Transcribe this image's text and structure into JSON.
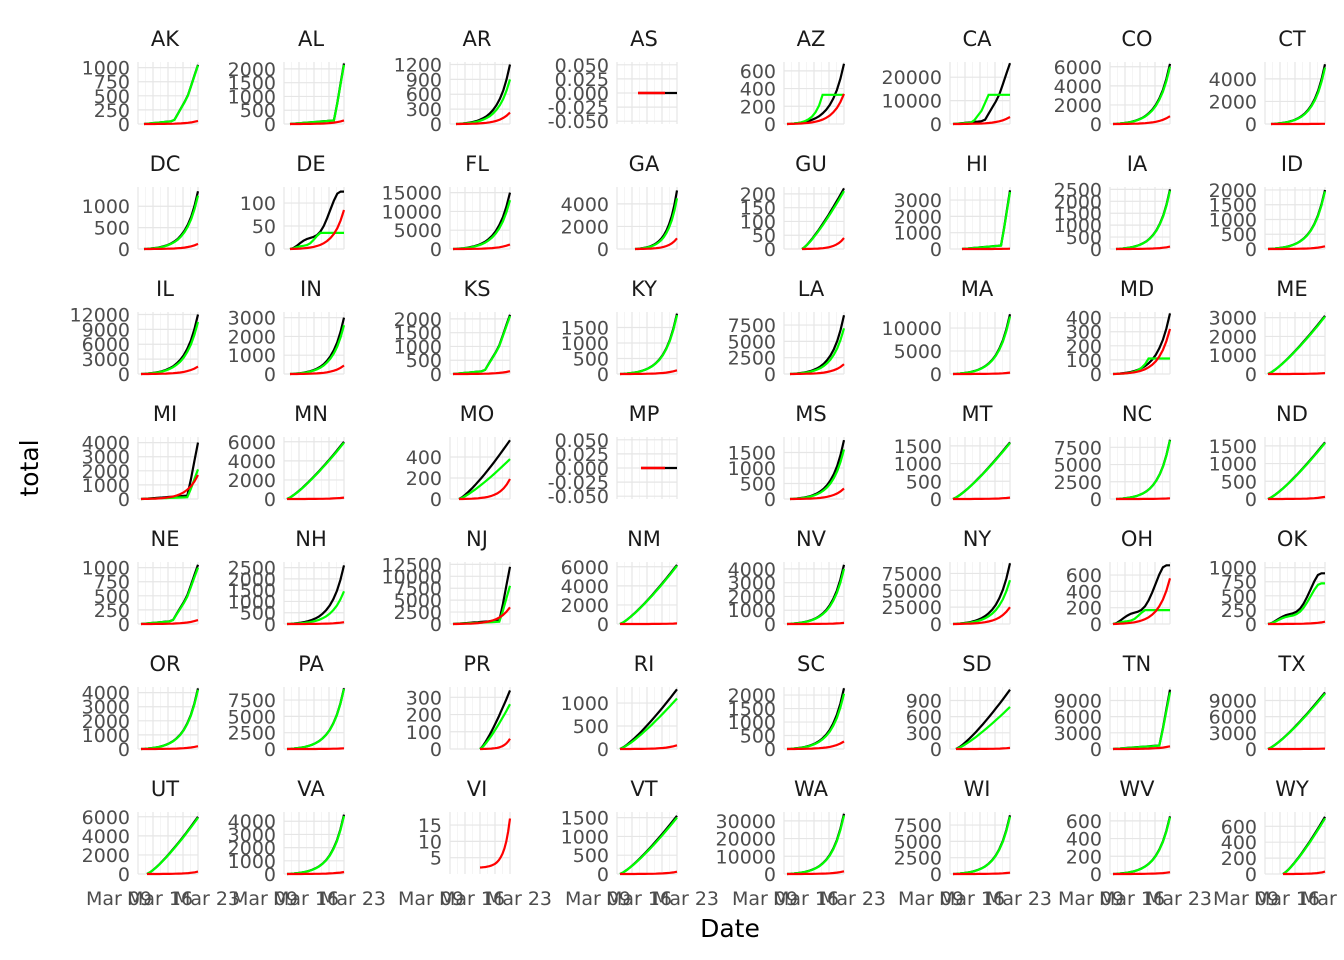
{
  "chart_data": {
    "type": "line",
    "title": "",
    "xlabel": "Date",
    "ylabel": "total",
    "x_tick_labels": [
      "Mar 09",
      "Mar 16",
      "Mar 23"
    ],
    "x_range": [
      "2020-03-04",
      "2020-03-26"
    ],
    "grid": true,
    "legend": "none",
    "series": [
      {
        "key": "black",
        "color": "#000000"
      },
      {
        "key": "green",
        "color": "#00ff00"
      },
      {
        "key": "red",
        "color": "#ff0000"
      }
    ],
    "panels": [
      {
        "state": "AK",
        "yticks": [
          "0",
          "250",
          "500",
          "750",
          "1000"
        ],
        "ylim": [
          0,
          1100
        ],
        "xs": 0.1,
        "shape": "late",
        "bmax": 1050,
        "gmax": 1040,
        "rmax": 55
      },
      {
        "state": "AL",
        "yticks": [
          "0",
          "500",
          "1000",
          "1500",
          "2000"
        ],
        "ylim": [
          0,
          2250
        ],
        "xs": 0.1,
        "shape": "jump",
        "bmax": 2200,
        "gmax": 2150,
        "rmax": 130
      },
      {
        "state": "AR",
        "yticks": [
          "0",
          "300",
          "600",
          "900",
          "1200"
        ],
        "ylim": [
          0,
          1250
        ],
        "xs": 0.1,
        "shape": "exp",
        "bmax": 1200,
        "gmax": 900,
        "rmax": 230
      },
      {
        "state": "AS",
        "yticks": [
          "-0.050",
          "-0.025",
          "0.000",
          "0.025",
          "0.050"
        ],
        "ylim": [
          -0.055,
          0.055
        ],
        "xs": 0.35,
        "shape": "flat",
        "bmax": 0,
        "gmax": 0,
        "rmax": 0
      },
      {
        "state": "AZ",
        "yticks": [
          "0",
          "200",
          "400",
          "600"
        ],
        "ylim": [
          0,
          700
        ],
        "xs": 0.05,
        "shape": "exp",
        "bmax": 680,
        "gmax": 330,
        "rmax": 340
      },
      {
        "state": "CA",
        "yticks": [
          "0",
          "10000",
          "20000"
        ],
        "ylim": [
          0,
          26500
        ],
        "xs": 0.05,
        "shape": "late",
        "bmax": 26000,
        "gmax": 12500,
        "rmax": 3000
      },
      {
        "state": "CO",
        "yticks": [
          "0",
          "2000",
          "4000",
          "6000"
        ],
        "ylim": [
          0,
          6500
        ],
        "xs": 0.05,
        "shape": "exp",
        "bmax": 6300,
        "gmax": 6000,
        "rmax": 820
      },
      {
        "state": "CT",
        "yticks": [
          "0",
          "2000",
          "4000"
        ],
        "ylim": [
          0,
          5500
        ],
        "xs": 0.1,
        "shape": "exp",
        "bmax": 5300,
        "gmax": 5000,
        "rmax": 20
      },
      {
        "state": "DC",
        "yticks": [
          "0",
          "500",
          "1000"
        ],
        "ylim": [
          0,
          1450
        ],
        "xs": 0.1,
        "shape": "exp",
        "bmax": 1350,
        "gmax": 1250,
        "rmax": 120
      },
      {
        "state": "DE",
        "yticks": [
          "0",
          "50",
          "100"
        ],
        "ylim": [
          0,
          135
        ],
        "xs": 0.1,
        "shape": "bumpy",
        "bmax": 125,
        "gmax": 35,
        "rmax": 85
      },
      {
        "state": "FL",
        "yticks": [
          "0",
          "5000",
          "10000",
          "15000"
        ],
        "ylim": [
          0,
          16500
        ],
        "xs": 0.05,
        "shape": "exp",
        "bmax": 15000,
        "gmax": 13000,
        "rmax": 1200
      },
      {
        "state": "GA",
        "yticks": [
          "0",
          "2000",
          "4000"
        ],
        "ylim": [
          0,
          5500
        ],
        "xs": 0.3,
        "shape": "exp",
        "bmax": 5200,
        "gmax": 4500,
        "rmax": 950
      },
      {
        "state": "GU",
        "yticks": [
          "0",
          "50",
          "100",
          "150",
          "200"
        ],
        "ylim": [
          0,
          225
        ],
        "xs": 0.3,
        "shape": "linear",
        "bmax": 220,
        "gmax": 210,
        "rmax": 40
      },
      {
        "state": "HI",
        "yticks": [
          "0",
          "1000",
          "2000",
          "3000"
        ],
        "ylim": [
          0,
          3800
        ],
        "xs": 0.2,
        "shape": "jump",
        "bmax": 3600,
        "gmax": 3500,
        "rmax": 20
      },
      {
        "state": "IA",
        "yticks": [
          "0",
          "500",
          "1000",
          "1500",
          "2000",
          "2500"
        ],
        "ylim": [
          0,
          2600
        ],
        "xs": 0.1,
        "shape": "exp",
        "bmax": 2500,
        "gmax": 2450,
        "rmax": 100
      },
      {
        "state": "ID",
        "yticks": [
          "0",
          "500",
          "1000",
          "1500",
          "2000"
        ],
        "ylim": [
          0,
          2100
        ],
        "xs": 0.05,
        "shape": "exp",
        "bmax": 2000,
        "gmax": 1950,
        "rmax": 90
      },
      {
        "state": "IL",
        "yticks": [
          "0",
          "3000",
          "6000",
          "9000",
          "12000"
        ],
        "ylim": [
          0,
          12500
        ],
        "xs": 0.05,
        "shape": "exp",
        "bmax": 12000,
        "gmax": 10500,
        "rmax": 1500
      },
      {
        "state": "IN",
        "yticks": [
          "0",
          "1000",
          "2000",
          "3000"
        ],
        "ylim": [
          0,
          3300
        ],
        "xs": 0.1,
        "shape": "exp",
        "bmax": 3000,
        "gmax": 2600,
        "rmax": 450
      },
      {
        "state": "KS",
        "yticks": [
          "0",
          "500",
          "1000",
          "1500",
          "2000"
        ],
        "ylim": [
          0,
          2250
        ],
        "xs": 0.05,
        "shape": "late",
        "bmax": 2150,
        "gmax": 2100,
        "rmax": 100
      },
      {
        "state": "KY",
        "yticks": [
          "0",
          "500",
          "1000",
          "1500"
        ],
        "ylim": [
          0,
          2000
        ],
        "xs": 0.05,
        "shape": "exp",
        "bmax": 1950,
        "gmax": 1900,
        "rmax": 120
      },
      {
        "state": "LA",
        "yticks": [
          "0",
          "2500",
          "5000",
          "7500"
        ],
        "ylim": [
          0,
          9500
        ],
        "xs": 0.1,
        "shape": "exp",
        "bmax": 9000,
        "gmax": 7000,
        "rmax": 1500
      },
      {
        "state": "MA",
        "yticks": [
          "0",
          "5000",
          "10000"
        ],
        "ylim": [
          0,
          13500
        ],
        "xs": 0.05,
        "shape": "exp",
        "bmax": 13000,
        "gmax": 12500,
        "rmax": 300
      },
      {
        "state": "MD",
        "yticks": [
          "0",
          "100",
          "200",
          "300",
          "400"
        ],
        "ylim": [
          0,
          440
        ],
        "xs": 0.05,
        "shape": "exp",
        "bmax": 430,
        "gmax": 110,
        "rmax": 320
      },
      {
        "state": "ME",
        "yticks": [
          "0",
          "1000",
          "2000",
          "3000"
        ],
        "ylim": [
          0,
          3300
        ],
        "xs": 0.05,
        "shape": "linear",
        "bmax": 3100,
        "gmax": 3050,
        "rmax": 50
      },
      {
        "state": "MI",
        "yticks": [
          "0",
          "1000",
          "2000",
          "3000",
          "4000"
        ],
        "ylim": [
          0,
          4400
        ],
        "xs": 0.05,
        "shape": "jump",
        "bmax": 4000,
        "gmax": 2100,
        "rmax": 1700
      },
      {
        "state": "MN",
        "yticks": [
          "0",
          "2000",
          "4000",
          "6000"
        ],
        "ylim": [
          0,
          6500
        ],
        "xs": 0.05,
        "shape": "linear",
        "bmax": 6000,
        "gmax": 5900,
        "rmax": 150
      },
      {
        "state": "MO",
        "yticks": [
          "0",
          "200",
          "400"
        ],
        "ylim": [
          0,
          590
        ],
        "xs": 0.15,
        "shape": "linear",
        "bmax": 560,
        "gmax": 380,
        "rmax": 190
      },
      {
        "state": "MP",
        "yticks": [
          "-0.050",
          "-0.025",
          "0.000",
          "0.025",
          "0.050"
        ],
        "ylim": [
          -0.055,
          0.055
        ],
        "xs": 0.4,
        "shape": "flat",
        "bmax": 0,
        "gmax": 0,
        "rmax": 0
      },
      {
        "state": "MS",
        "yticks": [
          "0",
          "500",
          "1000",
          "1500"
        ],
        "ylim": [
          0,
          2000
        ],
        "xs": 0.1,
        "shape": "exp",
        "bmax": 1900,
        "gmax": 1600,
        "rmax": 340
      },
      {
        "state": "MT",
        "yticks": [
          "0",
          "500",
          "1000",
          "1500"
        ],
        "ylim": [
          0,
          1750
        ],
        "xs": 0.05,
        "shape": "linear",
        "bmax": 1600,
        "gmax": 1580,
        "rmax": 40
      },
      {
        "state": "NC",
        "yticks": [
          "0",
          "2500",
          "5000",
          "7500"
        ],
        "ylim": [
          0,
          9000
        ],
        "xs": 0.1,
        "shape": "exp",
        "bmax": 8600,
        "gmax": 8500,
        "rmax": 100
      },
      {
        "state": "ND",
        "yticks": [
          "0",
          "500",
          "1000",
          "1500"
        ],
        "ylim": [
          0,
          1750
        ],
        "xs": 0.05,
        "shape": "linear",
        "bmax": 1600,
        "gmax": 1580,
        "rmax": 60
      },
      {
        "state": "NE",
        "yticks": [
          "0",
          "250",
          "500",
          "750",
          "1000"
        ],
        "ylim": [
          0,
          1100
        ],
        "xs": 0.05,
        "shape": "late",
        "bmax": 1050,
        "gmax": 1000,
        "rmax": 70
      },
      {
        "state": "NH",
        "yticks": [
          "0",
          "500",
          "1000",
          "1500",
          "2000",
          "2500"
        ],
        "ylim": [
          0,
          2750
        ],
        "xs": 0.05,
        "shape": "exp",
        "bmax": 2600,
        "gmax": 1450,
        "rmax": 80
      },
      {
        "state": "NJ",
        "yticks": [
          "0",
          "2500",
          "5000",
          "7500",
          "10000",
          "12500"
        ],
        "ylim": [
          0,
          13000
        ],
        "xs": 0.05,
        "shape": "jump",
        "bmax": 12000,
        "gmax": 8000,
        "rmax": 3500
      },
      {
        "state": "NM",
        "yticks": [
          "0",
          "2000",
          "4000",
          "6000"
        ],
        "ylim": [
          0,
          6500
        ],
        "xs": 0.05,
        "shape": "linear",
        "bmax": 6200,
        "gmax": 6100,
        "rmax": 60
      },
      {
        "state": "NV",
        "yticks": [
          "0",
          "1000",
          "2000",
          "3000",
          "4000"
        ],
        "ylim": [
          0,
          4500
        ],
        "xs": 0.05,
        "shape": "exp",
        "bmax": 4300,
        "gmax": 4000,
        "rmax": 80
      },
      {
        "state": "NY",
        "yticks": [
          "0",
          "25000",
          "50000",
          "75000"
        ],
        "ylim": [
          0,
          92000
        ],
        "xs": 0.05,
        "shape": "exp",
        "bmax": 90000,
        "gmax": 65000,
        "rmax": 25000
      },
      {
        "state": "OH",
        "yticks": [
          "0",
          "200",
          "400",
          "600"
        ],
        "ylim": [
          0,
          760
        ],
        "xs": 0.05,
        "shape": "bumpy",
        "bmax": 720,
        "gmax": 170,
        "rmax": 560
      },
      {
        "state": "OK",
        "yticks": [
          "0",
          "250",
          "500",
          "750",
          "1000"
        ],
        "ylim": [
          0,
          1100
        ],
        "xs": 0.05,
        "shape": "bumpy",
        "bmax": 900,
        "gmax": 720,
        "rmax": 40
      },
      {
        "state": "OR",
        "yticks": [
          "0",
          "1000",
          "2000",
          "3000",
          "4000"
        ],
        "ylim": [
          0,
          4400
        ],
        "xs": 0.05,
        "shape": "exp",
        "bmax": 4300,
        "gmax": 4200,
        "rmax": 200
      },
      {
        "state": "PA",
        "yticks": [
          "0",
          "2500",
          "5000",
          "7500"
        ],
        "ylim": [
          0,
          9500
        ],
        "xs": 0.05,
        "shape": "exp",
        "bmax": 9300,
        "gmax": 9200,
        "rmax": 100
      },
      {
        "state": "PR",
        "yticks": [
          "0",
          "100",
          "200",
          "300"
        ],
        "ylim": [
          0,
          360
        ],
        "xs": 0.5,
        "shape": "linear",
        "bmax": 340,
        "gmax": 260,
        "rmax": 60
      },
      {
        "state": "RI",
        "yticks": [
          "0",
          "500",
          "1000"
        ],
        "ylim": [
          0,
          1350
        ],
        "xs": 0.05,
        "shape": "linear",
        "bmax": 1300,
        "gmax": 1100,
        "rmax": 80
      },
      {
        "state": "SC",
        "yticks": [
          "0",
          "500",
          "1000",
          "1500",
          "2000"
        ],
        "ylim": [
          0,
          2300
        ],
        "xs": 0.05,
        "shape": "exp",
        "bmax": 2250,
        "gmax": 2050,
        "rmax": 280
      },
      {
        "state": "SD",
        "yticks": [
          "0",
          "300",
          "600",
          "900"
        ],
        "ylim": [
          0,
          1150
        ],
        "xs": 0.1,
        "shape": "linear",
        "bmax": 1100,
        "gmax": 780,
        "rmax": 20
      },
      {
        "state": "TN",
        "yticks": [
          "0",
          "3000",
          "6000",
          "9000"
        ],
        "ylim": [
          0,
          11500
        ],
        "xs": 0.05,
        "shape": "jump",
        "bmax": 11000,
        "gmax": 10500,
        "rmax": 500
      },
      {
        "state": "TX",
        "yticks": [
          "0",
          "3000",
          "6000",
          "9000"
        ],
        "ylim": [
          0,
          11500
        ],
        "xs": 0.05,
        "shape": "linear",
        "bmax": 10500,
        "gmax": 10300,
        "rmax": 80
      },
      {
        "state": "UT",
        "yticks": [
          "0",
          "2000",
          "4000",
          "6000"
        ],
        "ylim": [
          0,
          6500
        ],
        "xs": 0.15,
        "shape": "linear",
        "bmax": 6000,
        "gmax": 5900,
        "rmax": 250
      },
      {
        "state": "VA",
        "yticks": [
          "0",
          "1000",
          "2000",
          "3000",
          "4000"
        ],
        "ylim": [
          0,
          4700
        ],
        "xs": 0.05,
        "shape": "exp",
        "bmax": 4500,
        "gmax": 4400,
        "rmax": 150
      },
      {
        "state": "VI",
        "yticks": [
          "5",
          "10",
          "15"
        ],
        "ylim": [
          0,
          19
        ],
        "xs": 0.5,
        "shape": "jump",
        "bmax": 0,
        "gmax": 0,
        "rmax": 17,
        "rmin": 2
      },
      {
        "state": "VT",
        "yticks": [
          "0",
          "500",
          "1000",
          "1500"
        ],
        "ylim": [
          0,
          1650
        ],
        "xs": 0.05,
        "shape": "linear",
        "bmax": 1550,
        "gmax": 1500,
        "rmax": 60
      },
      {
        "state": "WA",
        "yticks": [
          "0",
          "10000",
          "20000",
          "30000"
        ],
        "ylim": [
          0,
          35000
        ],
        "xs": 0.05,
        "shape": "exp",
        "bmax": 34000,
        "gmax": 33000,
        "rmax": 1500
      },
      {
        "state": "WI",
        "yticks": [
          "0",
          "2500",
          "5000",
          "7500"
        ],
        "ylim": [
          0,
          9500
        ],
        "xs": 0.05,
        "shape": "exp",
        "bmax": 9000,
        "gmax": 8800,
        "rmax": 200
      },
      {
        "state": "WV",
        "yticks": [
          "0",
          "200",
          "400",
          "600"
        ],
        "ylim": [
          0,
          700
        ],
        "xs": 0.05,
        "shape": "exp",
        "bmax": 650,
        "gmax": 640,
        "rmax": 20
      },
      {
        "state": "WY",
        "yticks": [
          "0",
          "200",
          "400",
          "600"
        ],
        "ylim": [
          0,
          780
        ],
        "xs": 0.3,
        "shape": "linear",
        "bmax": 720,
        "gmax": 700,
        "rmax": 30
      }
    ]
  }
}
